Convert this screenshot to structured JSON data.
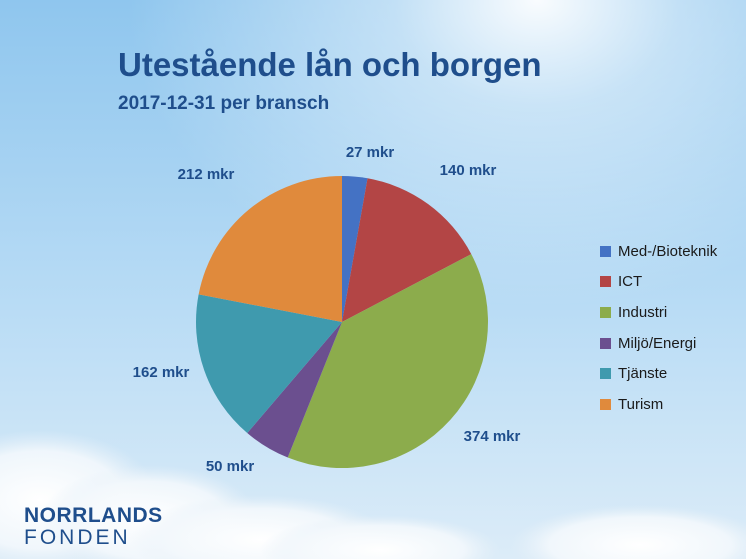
{
  "chart_data": {
    "type": "pie",
    "title": "Utestående lån och borgen",
    "subtitle": "2017-12-31 per bransch",
    "legend_position": "right",
    "slices": [
      {
        "name": "Med-/Bioteknik",
        "value": 27,
        "label": "27 mkr",
        "color": "#4472c4"
      },
      {
        "name": "ICT",
        "value": 140,
        "label": "140 mkr",
        "color": "#b34545"
      },
      {
        "name": "Industri",
        "value": 374,
        "label": "374 mkr",
        "color": "#8cac4c"
      },
      {
        "name": "Miljö/Energi",
        "value": 50,
        "label": "50 mkr",
        "color": "#6b4f8f"
      },
      {
        "name": "Tjänste",
        "value": 162,
        "label": "162 mkr",
        "color": "#3f9aae"
      },
      {
        "name": "Turism",
        "value": 212,
        "label": "212 mkr",
        "color": "#e08a3c"
      }
    ]
  },
  "logo": {
    "line1": "NORRLANDS",
    "line2": "FONDEN"
  }
}
